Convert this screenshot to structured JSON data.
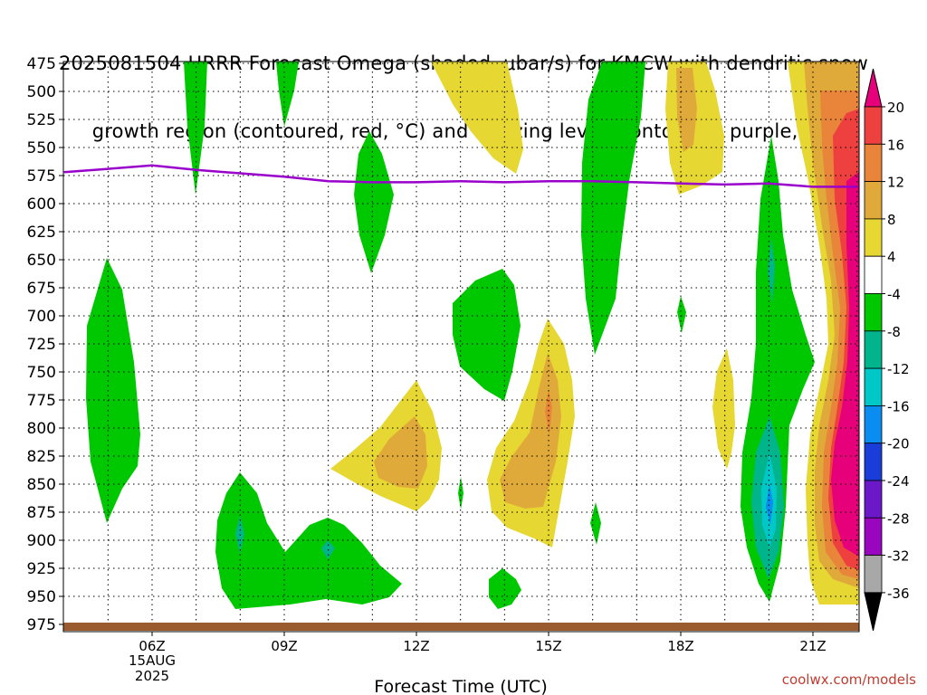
{
  "title_line1": "2025081504 HRRR Forecast Omega (shaded, μbar/s) for KMCW with dendritic snow",
  "title_line2": "growth region (contoured, red, °C) and freezing level (contoured, purple, °C)",
  "watermark": "coolwx.com/models",
  "colors": {
    "yellow": "#e6d733",
    "orange_light": "#e0aa3a",
    "orange": "#e9853a",
    "red": "#ef4040",
    "magenta": "#e6007a",
    "green": "#00c800",
    "teal": "#00b48c",
    "cyan": "#00c8c8",
    "blue": "#0a8cf0",
    "purple_line": "#9900cc",
    "ground": "#9a5b2e"
  },
  "chart_data": {
    "type": "heatmap",
    "xlabel": "Forecast Time (UTC)",
    "ylabel": "",
    "x_ticks": [
      "06Z",
      "09Z",
      "12Z",
      "15Z",
      "18Z",
      "21Z"
    ],
    "x_date_label": [
      "15AUG",
      "2025"
    ],
    "xlim_hours": [
      4,
      22
    ],
    "y_ticks": [
      475,
      500,
      525,
      550,
      575,
      600,
      625,
      650,
      675,
      700,
      725,
      750,
      775,
      800,
      825,
      850,
      875,
      900,
      925,
      950,
      975
    ],
    "ylim_mb": [
      475,
      975
    ],
    "grid": true,
    "colorbar_labels": [
      "20",
      "16",
      "12",
      "8",
      "4",
      "-4",
      "-8",
      "-12",
      "-16",
      "-20",
      "-24",
      "-28",
      "-32",
      "-36"
    ],
    "colorbar_colors": [
      "#e6007a",
      "#ef4040",
      "#e9853a",
      "#e0aa3a",
      "#e6d733",
      "#ffffff",
      "#00c800",
      "#00b48c",
      "#00c8c8",
      "#0a8cf0",
      "#1a3cd8",
      "#6a18c8",
      "#9a06c0",
      "#a8a8a8",
      "#000000"
    ],
    "freezing_level": {
      "name": "freezing level",
      "hours": [
        4,
        5,
        6,
        7,
        8,
        9,
        10,
        11,
        12,
        13,
        14,
        15,
        16,
        17,
        18,
        19,
        20,
        21,
        22
      ],
      "mb": [
        572,
        569,
        566,
        570,
        573,
        576,
        580,
        581,
        581,
        580,
        581,
        580,
        580,
        581,
        582,
        583,
        582,
        585,
        585
      ]
    }
  }
}
